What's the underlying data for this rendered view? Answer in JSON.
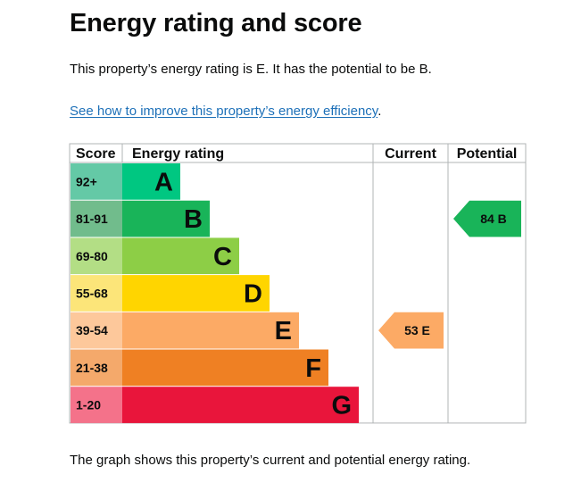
{
  "title": "Energy rating and score",
  "intro": "This property’s energy rating is E. It has the potential to be B.",
  "link": {
    "text": "See how to improve this property’s energy efficiency",
    "suffix": "."
  },
  "footnote": "The graph shows this property’s current and potential energy rating.",
  "chart_data": {
    "type": "bar",
    "title": "Energy rating and score",
    "headers": {
      "score": "Score",
      "rating": "Energy rating",
      "current": "Current",
      "potential": "Potential"
    },
    "bands": [
      {
        "score": "92+",
        "letter": "A",
        "color": "#00c781",
        "score_color": "#64c9a6"
      },
      {
        "score": "81-91",
        "letter": "B",
        "color": "#19b459",
        "score_color": "#71bc8c"
      },
      {
        "score": "69-80",
        "letter": "C",
        "color": "#8dce46",
        "score_color": "#b3de85"
      },
      {
        "score": "55-68",
        "letter": "D",
        "color": "#ffd500",
        "score_color": "#fce579"
      },
      {
        "score": "39-54",
        "letter": "E",
        "color": "#fcaa65",
        "score_color": "#fdc89b"
      },
      {
        "score": "21-38",
        "letter": "F",
        "color": "#ef8023",
        "score_color": "#f4a96b"
      },
      {
        "score": "1-20",
        "letter": "G",
        "color": "#e9153b",
        "score_color": "#f4728a"
      }
    ],
    "current": {
      "value": 53,
      "letter": "E",
      "label": "53  E",
      "color": "#fcaa65"
    },
    "potential": {
      "value": 84,
      "letter": "B",
      "label": "84  B",
      "color": "#19b459"
    }
  }
}
